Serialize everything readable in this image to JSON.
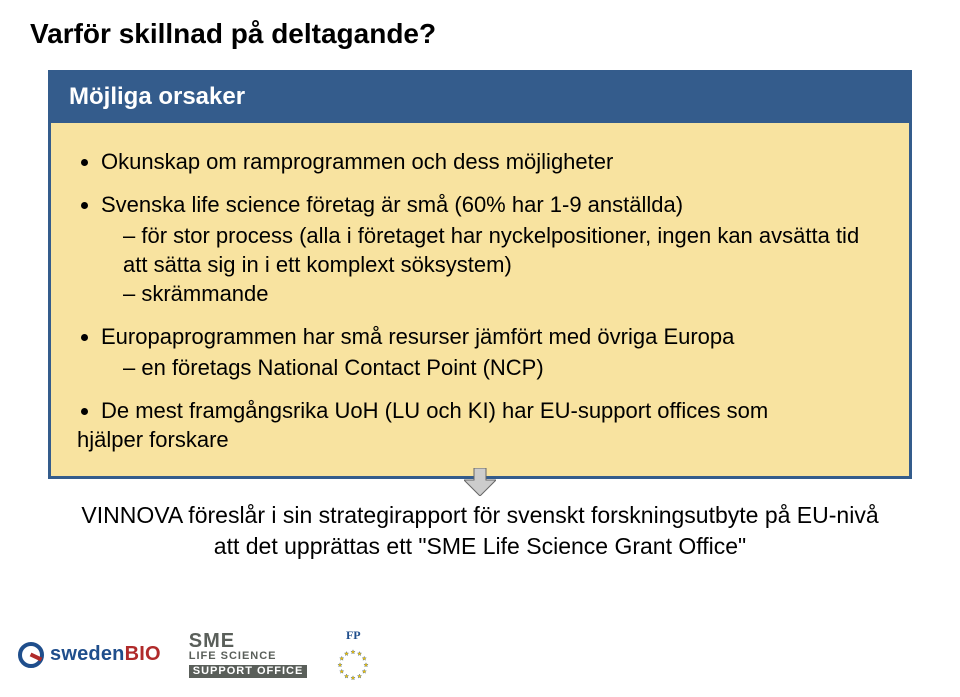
{
  "title": "Varför skillnad på deltagande?",
  "box": {
    "header": "Möjliga orsaker",
    "b1": "Okunskap om ramprogrammen och dess möjligheter",
    "b2": "Svenska life science företag är små (60% har 1-9 anställda)",
    "b2_s1": "för stor process (alla i företaget har nyckelpositioner, ingen kan avsätta tid att sätta sig in i ett komplext söksystem)",
    "b2_s2": "skrämmande",
    "b3": "Europaprogrammen har små resurser jämfört med övriga Europa",
    "b3_s1": "en företags National Contact Point (NCP)",
    "b4_pre": "De mest framgångsrika UoH (LU och KI) har EU-support offices som",
    "b4_post": "hjälper forskare"
  },
  "bottom": {
    "line1": "VINNOVA föreslår i sin strategirapport för svenskt forskningsutbyte på EU-nivå",
    "line2": "att det upprättas ett \"SME Life Science Grant Office\""
  },
  "logos": {
    "swedenbio_sw": "sweden",
    "swedenbio_bio": "BIO",
    "sme_l1": "SME",
    "sme_l2": "LIFE SCIENCE",
    "sme_l3": "SUPPORT OFFICE",
    "fp": "FP"
  },
  "colors": {
    "brand_blue": "#345c8c",
    "brand_red": "#b02a2a",
    "box_fill": "#f8e3a0",
    "eu_gold": "#f3c200",
    "eu_blue": "#1f4e8c",
    "arrow_fill": "#cccccc",
    "arrow_stroke": "#666666"
  }
}
